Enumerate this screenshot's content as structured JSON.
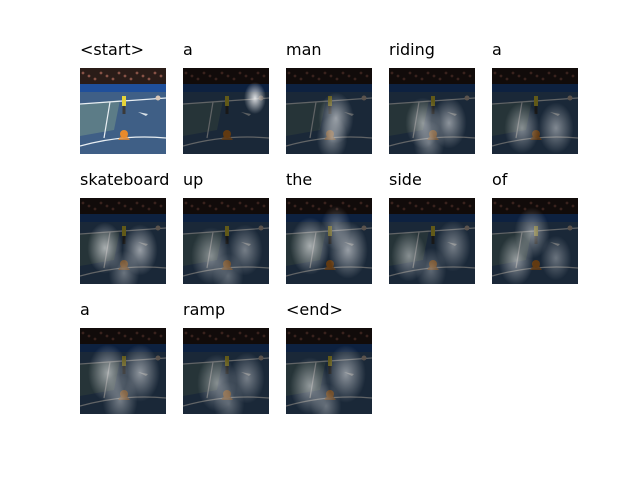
{
  "caption_tokens": [
    "<start>",
    "a",
    "man",
    "riding",
    "a",
    "skateboard",
    "up",
    "the",
    "side",
    "of",
    "a",
    "ramp",
    "<end>"
  ],
  "colors": {
    "court_blue": "#3f5f86",
    "court_line": "#e8eef2",
    "stands_dark": "#2a1c18",
    "banner_blue": "#1f4f9a",
    "player_yellow": "#e6d43a",
    "orange_mark": "#e88a2a",
    "attention_glow": "#ffffff",
    "shadow": "#000000"
  }
}
